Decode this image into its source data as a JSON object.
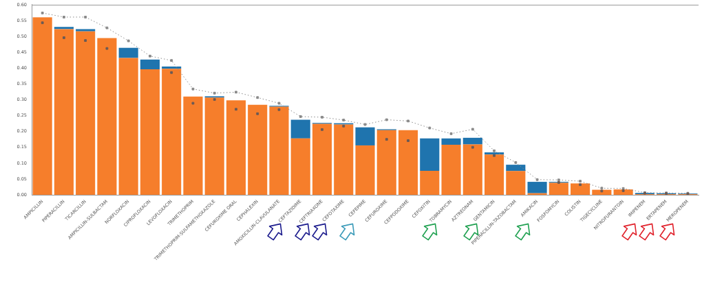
{
  "chart_data": {
    "type": "bar",
    "stacked": true,
    "grid": false,
    "legend": false,
    "marker": "square",
    "categories": [
      "AMPICILLIN",
      "PIPERACILLIN",
      "TICARCILLIN",
      "AMPICILLIN-SULBACTAM",
      "NORFLOXACIN",
      "CIPROFLOXACIN",
      "LEVOFLOXACIN",
      "TRIMETHOPRIM",
      "TRIMETHOPRIM-SULFAMETHOXAZOLE",
      "CEFUROXIME ORAL",
      "CEPHALEXIN",
      "AMOXICILLIN-CLAVULANATE",
      "CEFTAZIDIME",
      "CEFTRIAXONE",
      "CEFOTAXIME",
      "CEFEPIME",
      "CEFUROXIME",
      "CEFPODOXIME",
      "CEFOXITIN",
      "TOBRAMYCIN",
      "AZTREONAM",
      "GENTAMICIN",
      "PIPERACILLIN-TAZOBACTAM",
      "AMIKACIN",
      "FOSFOMYCIN",
      "COLISTIN",
      "TIGECYCLINE",
      "NITROFURANTOIN",
      "IMIPENEM",
      "ERTAPENEM",
      "MEROPENEM"
    ],
    "ylim": [
      0,
      0.6
    ],
    "yticks": [
      {
        "value": 0,
        "label": "0.00"
      },
      {
        "value": 0.05,
        "label": "0.05"
      },
      {
        "value": 0.1,
        "label": "0.10"
      },
      {
        "value": 0.15,
        "label": "0.15"
      },
      {
        "value": 0.2,
        "label": "0.20"
      },
      {
        "value": 0.25,
        "label": "0.25"
      },
      {
        "value": 0.3,
        "label": "0.30"
      },
      {
        "value": 0.35,
        "label": "0.35"
      },
      {
        "value": 0.4,
        "label": "0.40"
      },
      {
        "value": 0.45,
        "label": "0.45"
      },
      {
        "value": 0.5,
        "label": "0.50"
      },
      {
        "value": 0.55,
        "label": "0.55"
      },
      {
        "value": 0.6,
        "label": "0.60"
      }
    ],
    "series": [
      {
        "color": "#f67e2b",
        "values": [
          0.56,
          0.523,
          0.516,
          0.495,
          0.432,
          0.396,
          0.398,
          0.31,
          0.307,
          0.298,
          0.284,
          0.278,
          0.178,
          0.224,
          0.222,
          0.156,
          0.204,
          0.204,
          0.076,
          0.158,
          0.159,
          0.127,
          0.075,
          0.005,
          0.038,
          0.036,
          0.016,
          0.017,
          0.002,
          0.002,
          0.002
        ]
      },
      {
        "color": "#1f74ae",
        "values": [
          null,
          0.007,
          0.007,
          null,
          0.032,
          0.031,
          0.007,
          null,
          0.004,
          null,
          null,
          0.003,
          0.059,
          0.003,
          0.004,
          0.057,
          0.003,
          null,
          0.102,
          0.02,
          0.021,
          0.007,
          0.02,
          0.036,
          0.003,
          null,
          null,
          null,
          0.004,
          0.003,
          0.002
        ]
      },
      {
        "type": "line",
        "color": "#8a8a8a",
        "line_style": "dotted",
        "values": [
          0.574,
          0.561,
          0.561,
          0.527,
          0.486,
          0.438,
          0.424,
          0.334,
          0.321,
          0.324,
          0.307,
          0.289,
          0.247,
          0.245,
          0.236,
          0.222,
          0.237,
          0.233,
          0.211,
          0.193,
          0.207,
          0.139,
          0.102,
          0.048,
          0.047,
          0.043,
          0.021,
          0.02,
          0.007,
          0.006,
          0.005
        ]
      },
      {
        "type": "scatter",
        "color": "#6b5a55",
        "values": [
          0.543,
          0.496,
          0.487,
          0.462,
          null,
          null,
          0.386,
          0.289,
          0.301,
          0.27,
          0.256,
          0.269,
          null,
          0.206,
          0.217,
          null,
          0.175,
          0.171,
          null,
          null,
          0.15,
          0.124,
          null,
          null,
          0.039,
          0.032,
          0.012,
          0.013,
          0.005,
          0.004,
          0.003
        ]
      }
    ]
  }
}
